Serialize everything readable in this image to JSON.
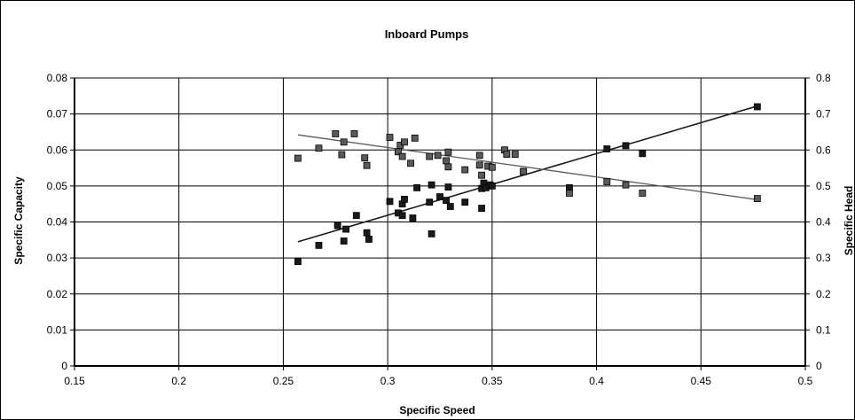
{
  "chart_data": {
    "type": "scatter",
    "title": "Inboard Pumps",
    "xlabel": "Specific Speed",
    "ylabel": "Specific Capacity",
    "y2label": "Specific Head",
    "xlim": [
      0.15,
      0.5
    ],
    "ylim": [
      0,
      0.08
    ],
    "y2lim": [
      0,
      0.8
    ],
    "xticks": [
      "0.15",
      "0.2",
      "0.25",
      "0.3",
      "0.35",
      "0.4",
      "0.45",
      "0.5"
    ],
    "yticks": [
      "0",
      "0.01",
      "0.02",
      "0.03",
      "0.04",
      "0.05",
      "0.06",
      "0.07",
      "0.08"
    ],
    "y2ticks": [
      "0",
      "0.1",
      "0.2",
      "0.3",
      "0.4",
      "0.5",
      "0.6",
      "0.7",
      "0.8"
    ],
    "grid": true,
    "colors": {
      "capacity": "#1a1a1a",
      "head": "#5a5a5a"
    },
    "series": [
      {
        "axis": "left",
        "trendline": [
          [
            0.257,
            0.0345
          ],
          [
            0.477,
            0.0722
          ]
        ],
        "points": [
          [
            0.257,
            0.029
          ],
          [
            0.267,
            0.0335
          ],
          [
            0.276,
            0.039
          ],
          [
            0.279,
            0.0347
          ],
          [
            0.28,
            0.038
          ],
          [
            0.285,
            0.0418
          ],
          [
            0.29,
            0.037
          ],
          [
            0.291,
            0.0352
          ],
          [
            0.301,
            0.0457
          ],
          [
            0.305,
            0.0425
          ],
          [
            0.307,
            0.045
          ],
          [
            0.307,
            0.0418
          ],
          [
            0.308,
            0.0463
          ],
          [
            0.312,
            0.0411
          ],
          [
            0.314,
            0.0495
          ],
          [
            0.32,
            0.0455
          ],
          [
            0.321,
            0.0367
          ],
          [
            0.321,
            0.0503
          ],
          [
            0.325,
            0.047
          ],
          [
            0.328,
            0.046
          ],
          [
            0.329,
            0.0497
          ],
          [
            0.33,
            0.0443
          ],
          [
            0.337,
            0.0455
          ],
          [
            0.345,
            0.0493
          ],
          [
            0.345,
            0.0438
          ],
          [
            0.346,
            0.0508
          ],
          [
            0.347,
            0.0495
          ],
          [
            0.349,
            0.0503
          ],
          [
            0.35,
            0.05
          ],
          [
            0.365,
            0.054
          ],
          [
            0.387,
            0.0495
          ],
          [
            0.405,
            0.0603
          ],
          [
            0.414,
            0.0612
          ],
          [
            0.422,
            0.059
          ],
          [
            0.477,
            0.072
          ]
        ]
      },
      {
        "axis": "right",
        "trendline": [
          [
            0.257,
            0.642
          ],
          [
            0.477,
            0.462
          ]
        ],
        "points": [
          [
            0.257,
            0.577
          ],
          [
            0.267,
            0.605
          ],
          [
            0.275,
            0.645
          ],
          [
            0.278,
            0.587
          ],
          [
            0.279,
            0.622
          ],
          [
            0.284,
            0.645
          ],
          [
            0.289,
            0.578
          ],
          [
            0.29,
            0.557
          ],
          [
            0.301,
            0.635
          ],
          [
            0.305,
            0.595
          ],
          [
            0.306,
            0.613
          ],
          [
            0.307,
            0.582
          ],
          [
            0.308,
            0.622
          ],
          [
            0.311,
            0.563
          ],
          [
            0.313,
            0.633
          ],
          [
            0.32,
            0.582
          ],
          [
            0.324,
            0.585
          ],
          [
            0.328,
            0.57
          ],
          [
            0.329,
            0.594
          ],
          [
            0.329,
            0.553
          ],
          [
            0.337,
            0.545
          ],
          [
            0.344,
            0.585
          ],
          [
            0.344,
            0.558
          ],
          [
            0.345,
            0.53
          ],
          [
            0.348,
            0.555
          ],
          [
            0.35,
            0.552
          ],
          [
            0.356,
            0.6
          ],
          [
            0.357,
            0.588
          ],
          [
            0.361,
            0.588
          ],
          [
            0.365,
            0.54
          ],
          [
            0.387,
            0.48
          ],
          [
            0.405,
            0.512
          ],
          [
            0.414,
            0.503
          ],
          [
            0.422,
            0.48
          ],
          [
            0.477,
            0.465
          ]
        ]
      }
    ]
  }
}
